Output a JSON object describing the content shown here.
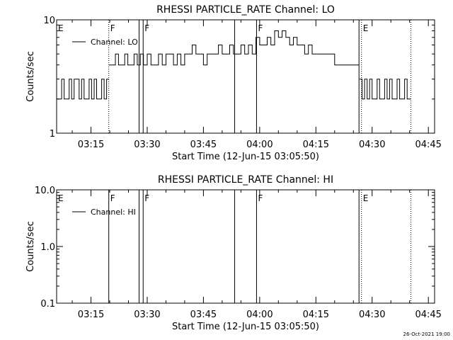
{
  "footer": {
    "timestamp": "26-Oct-2021 19:00"
  },
  "chart_data": [
    {
      "type": "line",
      "title": "RHESSI PARTICLE_RATE Channel: LO",
      "xlabel": "Start Time (12-Jun-15 03:05:50)",
      "ylabel": "Counts/sec",
      "yscale": "log",
      "ylim": [
        1,
        10
      ],
      "yticks": [
        {
          "value": 1,
          "label": "1"
        },
        {
          "value": 10,
          "label": "10"
        }
      ],
      "xlim": [
        "03:05:50",
        "04:46:40"
      ],
      "xticks": [
        "03:15",
        "03:30",
        "03:45",
        "04:00",
        "04:15",
        "04:30",
        "04:45"
      ],
      "legend": {
        "position": "top-left",
        "entries": [
          "Channel: LO"
        ]
      },
      "markers": [
        {
          "time": "03:05:50",
          "label": "E",
          "style": "none"
        },
        {
          "time": "03:19:45",
          "label": "F",
          "style": "dotted"
        },
        {
          "time": "03:27:50",
          "label": "",
          "style": "solid"
        },
        {
          "time": "03:28:55",
          "label": "F",
          "style": "solid"
        },
        {
          "time": "03:53:20",
          "label": "",
          "style": "solid"
        },
        {
          "time": "03:59:10",
          "label": "F",
          "style": "solid"
        },
        {
          "time": "04:26:30",
          "label": "",
          "style": "solid"
        },
        {
          "time": "04:27:10",
          "label": "E",
          "style": "dotted"
        },
        {
          "time": "04:40:20",
          "label": "",
          "style": "dotted"
        }
      ],
      "series": [
        {
          "name": "Channel: LO",
          "segments": [
            {
              "x": [
                "03:05:50",
                "03:06:30",
                "03:07:10",
                "03:07:50",
                "03:08:30",
                "03:09:10",
                "03:09:50",
                "03:10:30",
                "03:11:10",
                "03:11:50",
                "03:12:30",
                "03:13:10",
                "03:13:50",
                "03:14:30",
                "03:15:10",
                "03:15:50",
                "03:16:30",
                "03:17:10",
                "03:17:50",
                "03:18:30",
                "03:19:10",
                "03:19:45"
              ],
              "y": [
                2,
                2,
                3,
                2,
                2,
                3,
                2,
                3,
                3,
                2,
                3,
                2,
                2,
                3,
                2,
                3,
                2,
                2,
                3,
                2,
                3,
                3
              ]
            },
            {
              "x": [
                "03:19:50",
                "03:20:40",
                "03:21:30",
                "03:22:20",
                "03:23:10",
                "03:24:00",
                "03:24:50",
                "03:25:40",
                "03:26:30",
                "03:27:20",
                "03:28:10",
                "03:29:00",
                "03:30:00",
                "03:31:00",
                "03:32:00",
                "03:33:00",
                "03:34:00",
                "03:35:00",
                "03:36:00",
                "03:37:00",
                "03:38:00",
                "03:39:00",
                "03:40:00",
                "03:41:00",
                "03:42:00",
                "03:43:00",
                "03:44:00",
                "03:45:00",
                "03:46:00",
                "03:47:00",
                "03:48:00",
                "03:49:00",
                "03:50:00",
                "03:51:00",
                "03:52:00",
                "03:53:00",
                "03:54:00",
                "03:55:00",
                "03:56:00",
                "03:57:00",
                "03:58:00",
                "03:59:00",
                "04:00:00",
                "04:01:00",
                "04:02:00",
                "04:03:00",
                "04:04:00",
                "04:05:00",
                "04:06:00",
                "04:07:00",
                "04:08:00",
                "04:09:00",
                "04:10:00",
                "04:11:00",
                "04:12:00",
                "04:13:00",
                "04:14:00",
                "04:15:00",
                "04:16:00",
                "04:17:00",
                "04:18:00",
                "04:19:00",
                "04:20:00",
                "04:21:00",
                "04:22:00",
                "04:23:00",
                "04:24:00",
                "04:25:00",
                "04:26:00",
                "04:26:30"
              ],
              "y": [
                4,
                4,
                5,
                4,
                4,
                5,
                4,
                4,
                5,
                4,
                5,
                4,
                5,
                4,
                4,
                5,
                4,
                5,
                5,
                4,
                5,
                4,
                5,
                5,
                6,
                5,
                5,
                4,
                5,
                5,
                5,
                6,
                5,
                5,
                6,
                5,
                5,
                6,
                5,
                6,
                5,
                7,
                6,
                6,
                7,
                6,
                8,
                7,
                8,
                7,
                6,
                7,
                6,
                6,
                5,
                6,
                5,
                5,
                5,
                5,
                5,
                5,
                4,
                4,
                4,
                4,
                4,
                4,
                4,
                4
              ]
            },
            {
              "x": [
                "04:26:40",
                "04:27:20",
                "04:28:00",
                "04:28:40",
                "04:29:20",
                "04:30:00",
                "04:30:40",
                "04:31:20",
                "04:32:00",
                "04:32:40",
                "04:33:20",
                "04:34:00",
                "04:34:40",
                "04:35:20",
                "04:36:00",
                "04:36:40",
                "04:37:20",
                "04:38:00",
                "04:38:40",
                "04:39:20",
                "04:40:00",
                "04:40:20"
              ],
              "y": [
                3,
                2,
                3,
                2,
                3,
                2,
                2,
                3,
                2,
                2,
                3,
                2,
                3,
                2,
                2,
                3,
                2,
                2,
                3,
                2,
                2,
                2
              ]
            }
          ]
        }
      ]
    },
    {
      "type": "line",
      "title": "RHESSI PARTICLE_RATE Channel: HI",
      "xlabel": "Start Time (12-Jun-15 03:05:50)",
      "ylabel": "Counts/sec",
      "yscale": "log",
      "ylim": [
        0.1,
        10
      ],
      "yticks": [
        {
          "value": 0.1,
          "label": "0.1"
        },
        {
          "value": 1,
          "label": "1.0"
        },
        {
          "value": 10,
          "label": "10.0"
        }
      ],
      "xlim": [
        "03:05:50",
        "04:46:40"
      ],
      "xticks": [
        "03:15",
        "03:30",
        "03:45",
        "04:00",
        "04:15",
        "04:30",
        "04:45"
      ],
      "legend": {
        "position": "top-left",
        "entries": [
          "Channel: HI"
        ]
      },
      "markers": [
        {
          "time": "03:05:50",
          "label": "E",
          "style": "none"
        },
        {
          "time": "03:19:45",
          "label": "F",
          "style": "solid"
        },
        {
          "time": "03:27:50",
          "label": "",
          "style": "solid"
        },
        {
          "time": "03:28:55",
          "label": "F",
          "style": "solid"
        },
        {
          "time": "03:53:20",
          "label": "",
          "style": "solid"
        },
        {
          "time": "03:59:10",
          "label": "F",
          "style": "solid"
        },
        {
          "time": "04:26:30",
          "label": "",
          "style": "solid"
        },
        {
          "time": "04:27:10",
          "label": "E",
          "style": "dotted"
        },
        {
          "time": "04:40:20",
          "label": "",
          "style": "dotted"
        }
      ],
      "series": [
        {
          "name": "Channel: HI",
          "segments": []
        }
      ]
    }
  ]
}
